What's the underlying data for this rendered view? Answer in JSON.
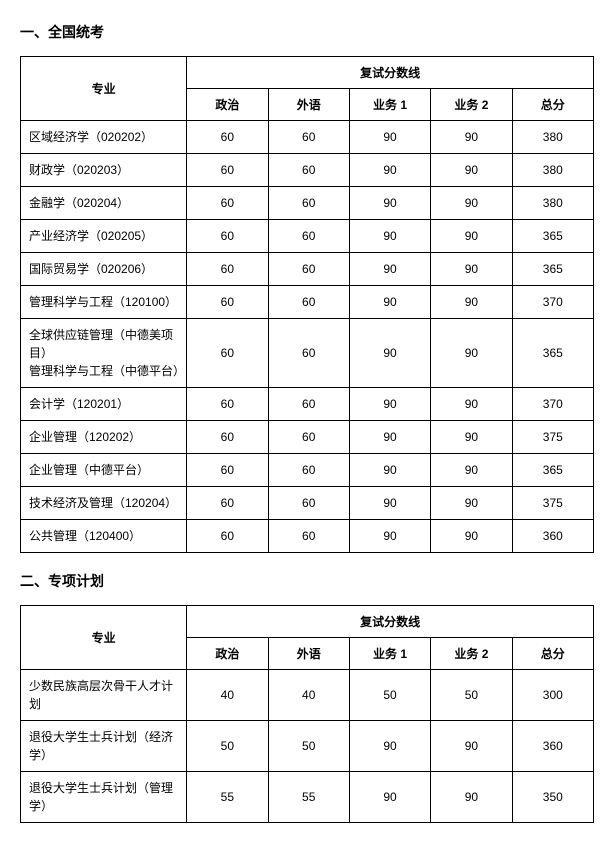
{
  "section1": {
    "title": "一、全国统考",
    "header_major": "专业",
    "header_group": "复试分数线",
    "columns": [
      "政治",
      "外语",
      "业务 1",
      "业务 2",
      "总分"
    ],
    "rows": [
      {
        "major": "区域经济学（020202）",
        "s": [
          "60",
          "60",
          "90",
          "90",
          "380"
        ]
      },
      {
        "major": "财政学（020203）",
        "s": [
          "60",
          "60",
          "90",
          "90",
          "380"
        ]
      },
      {
        "major": "金融学（020204）",
        "s": [
          "60",
          "60",
          "90",
          "90",
          "380"
        ]
      },
      {
        "major": "产业经济学（020205）",
        "s": [
          "60",
          "60",
          "90",
          "90",
          "365"
        ]
      },
      {
        "major": "国际贸易学（020206）",
        "s": [
          "60",
          "60",
          "90",
          "90",
          "365"
        ]
      },
      {
        "major": "管理科学与工程（120100）",
        "s": [
          "60",
          "60",
          "90",
          "90",
          "370"
        ]
      },
      {
        "major": "全球供应链管理（中德美项目）\n管理科学与工程（中德平台）",
        "s": [
          "60",
          "60",
          "90",
          "90",
          "365"
        ]
      },
      {
        "major": "会计学（120201）",
        "s": [
          "60",
          "60",
          "90",
          "90",
          "370"
        ]
      },
      {
        "major": "企业管理（120202）",
        "s": [
          "60",
          "60",
          "90",
          "90",
          "375"
        ]
      },
      {
        "major": "企业管理（中德平台）",
        "s": [
          "60",
          "60",
          "90",
          "90",
          "365"
        ]
      },
      {
        "major": "技术经济及管理（120204）",
        "s": [
          "60",
          "60",
          "90",
          "90",
          "375"
        ]
      },
      {
        "major": "公共管理（120400）",
        "s": [
          "60",
          "60",
          "90",
          "90",
          "360"
        ]
      }
    ]
  },
  "section2": {
    "title": "二、专项计划",
    "header_major": "专业",
    "header_group": "复试分数线",
    "columns": [
      "政治",
      "外语",
      "业务 1",
      "业务 2",
      "总分"
    ],
    "rows": [
      {
        "major": "少数民族高层次骨干人才计划",
        "s": [
          "40",
          "40",
          "50",
          "50",
          "300"
        ]
      },
      {
        "major": "退役大学生士兵计划（经济学）",
        "s": [
          "50",
          "50",
          "90",
          "90",
          "360"
        ]
      },
      {
        "major": "退役大学生士兵计划（管理学）",
        "s": [
          "55",
          "55",
          "90",
          "90",
          "350"
        ]
      }
    ]
  }
}
